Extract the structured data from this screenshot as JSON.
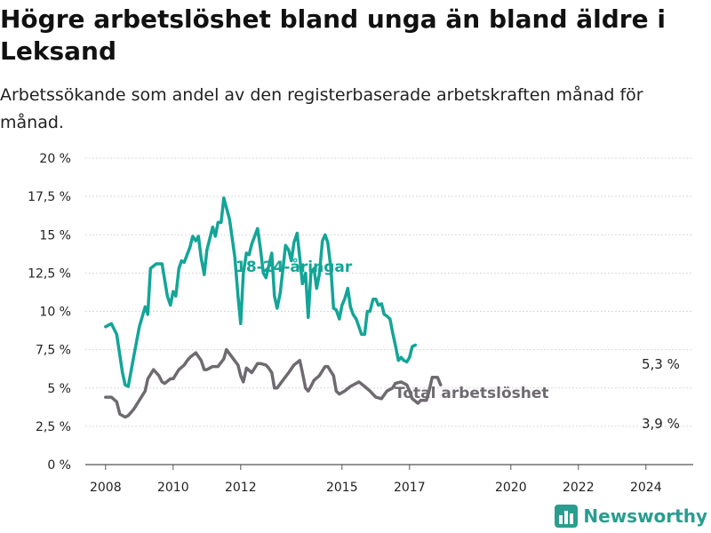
{
  "title": "Högre arbetslöshet bland unga än bland äldre i Leksand",
  "subtitle": "Arbetssökande som andel av den registerbaserade arbetskraften månad för månad.",
  "brand": {
    "name": "Newsworthy",
    "icon": "bar-chart-logo-icon",
    "color": "#2a9d8f"
  },
  "chart_data": {
    "type": "line",
    "x_unit": "year",
    "ylim": [
      0,
      20
    ],
    "xlim": [
      2007.4,
      2025.4
    ],
    "yticks": [
      0,
      2.5,
      5,
      7.5,
      10,
      12.5,
      15,
      17.5,
      20
    ],
    "ytick_labels": [
      "0 %",
      "2,5 %",
      "5 %",
      "7,5 %",
      "10 %",
      "12,5 %",
      "15 %",
      "17,5 %",
      "20 %"
    ],
    "xticks": [
      2008,
      2010,
      2012,
      2015,
      2017,
      2020,
      2022,
      2024
    ],
    "xtick_labels": [
      "2008",
      "2010",
      "2012",
      "2015",
      "2017",
      "2020",
      "2022",
      "2024"
    ],
    "grid": "horizontal",
    "series": [
      {
        "name": "18-24-åringar",
        "color": "#13a597",
        "end_label": "5,3 %",
        "points": [
          [
            2008.0,
            9.0
          ],
          [
            2008.17,
            9.2
          ],
          [
            2008.33,
            8.5
          ],
          [
            2008.5,
            6.0
          ],
          [
            2008.58,
            5.2
          ],
          [
            2008.67,
            5.1
          ],
          [
            2008.83,
            7.0
          ],
          [
            2009.0,
            9.0
          ],
          [
            2009.17,
            10.3
          ],
          [
            2009.25,
            9.8
          ],
          [
            2009.33,
            12.8
          ],
          [
            2009.5,
            13.1
          ],
          [
            2009.67,
            13.1
          ],
          [
            2009.83,
            11.0
          ],
          [
            2009.92,
            10.4
          ],
          [
            2010.0,
            11.3
          ],
          [
            2010.08,
            11.0
          ],
          [
            2010.17,
            12.8
          ],
          [
            2010.25,
            13.3
          ],
          [
            2010.33,
            13.2
          ],
          [
            2010.5,
            14.2
          ],
          [
            2010.58,
            14.9
          ],
          [
            2010.67,
            14.6
          ],
          [
            2010.75,
            14.9
          ],
          [
            2010.83,
            13.5
          ],
          [
            2010.92,
            12.4
          ],
          [
            2011.0,
            14.0
          ],
          [
            2011.17,
            15.5
          ],
          [
            2011.25,
            14.9
          ],
          [
            2011.33,
            15.8
          ],
          [
            2011.42,
            15.8
          ],
          [
            2011.5,
            17.4
          ],
          [
            2011.67,
            16.0
          ],
          [
            2011.83,
            13.5
          ],
          [
            2011.92,
            11.0
          ],
          [
            2012.0,
            9.2
          ],
          [
            2012.08,
            12.5
          ],
          [
            2012.17,
            13.8
          ],
          [
            2012.25,
            13.7
          ],
          [
            2012.33,
            14.4
          ],
          [
            2012.5,
            15.4
          ],
          [
            2012.58,
            14.2
          ],
          [
            2012.67,
            12.5
          ],
          [
            2012.75,
            12.2
          ],
          [
            2012.92,
            13.8
          ],
          [
            2013.0,
            11.0
          ],
          [
            2013.08,
            10.2
          ],
          [
            2013.17,
            11.2
          ],
          [
            2013.33,
            14.3
          ],
          [
            2013.42,
            14.0
          ],
          [
            2013.5,
            13.3
          ],
          [
            2013.58,
            14.5
          ],
          [
            2013.67,
            15.1
          ],
          [
            2013.75,
            13.5
          ],
          [
            2013.83,
            11.8
          ],
          [
            2013.92,
            12.5
          ],
          [
            2014.0,
            9.6
          ],
          [
            2014.08,
            12.5
          ],
          [
            2014.17,
            12.8
          ],
          [
            2014.25,
            11.5
          ],
          [
            2014.33,
            12.4
          ],
          [
            2014.42,
            14.6
          ],
          [
            2014.5,
            15.0
          ],
          [
            2014.58,
            14.5
          ],
          [
            2014.67,
            12.8
          ],
          [
            2014.75,
            10.2
          ],
          [
            2014.83,
            10.1
          ],
          [
            2014.92,
            9.5
          ],
          [
            2015.0,
            10.4
          ],
          [
            2015.08,
            10.8
          ],
          [
            2015.17,
            11.5
          ],
          [
            2015.25,
            10.3
          ],
          [
            2015.33,
            9.8
          ],
          [
            2015.42,
            9.5
          ],
          [
            2015.58,
            8.5
          ],
          [
            2015.67,
            8.5
          ],
          [
            2015.75,
            10.0
          ],
          [
            2015.83,
            10.0
          ],
          [
            2015.92,
            10.8
          ],
          [
            2016.0,
            10.8
          ],
          [
            2016.08,
            10.4
          ],
          [
            2016.17,
            10.5
          ],
          [
            2016.25,
            9.8
          ],
          [
            2016.33,
            9.7
          ],
          [
            2016.42,
            9.5
          ],
          [
            2016.5,
            8.6
          ],
          [
            2016.58,
            7.8
          ],
          [
            2016.67,
            6.8
          ],
          [
            2016.75,
            7.0
          ],
          [
            2016.83,
            6.8
          ],
          [
            2016.92,
            6.7
          ],
          [
            2017.0,
            7.0
          ],
          [
            2017.08,
            7.7
          ],
          [
            2017.17,
            7.8
          ]
        ]
      },
      {
        "name": "Total arbetslöshet",
        "color": "#6e6a70",
        "end_label": "3,9 %",
        "points": [
          [
            2008.0,
            4.4
          ],
          [
            2008.17,
            4.4
          ],
          [
            2008.33,
            4.1
          ],
          [
            2008.42,
            3.3
          ],
          [
            2008.58,
            3.1
          ],
          [
            2008.67,
            3.2
          ],
          [
            2008.83,
            3.6
          ],
          [
            2009.0,
            4.2
          ],
          [
            2009.17,
            4.8
          ],
          [
            2009.25,
            5.6
          ],
          [
            2009.42,
            6.2
          ],
          [
            2009.58,
            5.8
          ],
          [
            2009.67,
            5.4
          ],
          [
            2009.75,
            5.3
          ],
          [
            2009.92,
            5.6
          ],
          [
            2010.0,
            5.6
          ],
          [
            2010.17,
            6.2
          ],
          [
            2010.33,
            6.5
          ],
          [
            2010.42,
            6.8
          ],
          [
            2010.5,
            7.0
          ],
          [
            2010.67,
            7.3
          ],
          [
            2010.83,
            6.8
          ],
          [
            2010.92,
            6.2
          ],
          [
            2011.0,
            6.2
          ],
          [
            2011.17,
            6.4
          ],
          [
            2011.33,
            6.4
          ],
          [
            2011.5,
            6.9
          ],
          [
            2011.58,
            7.5
          ],
          [
            2011.75,
            7.0
          ],
          [
            2011.92,
            6.5
          ],
          [
            2012.0,
            5.8
          ],
          [
            2012.08,
            5.4
          ],
          [
            2012.17,
            6.3
          ],
          [
            2012.33,
            6.0
          ],
          [
            2012.5,
            6.6
          ],
          [
            2012.58,
            6.6
          ],
          [
            2012.75,
            6.5
          ],
          [
            2012.83,
            6.3
          ],
          [
            2012.92,
            6.0
          ],
          [
            2013.0,
            5.0
          ],
          [
            2013.08,
            5.0
          ],
          [
            2013.25,
            5.5
          ],
          [
            2013.42,
            6.0
          ],
          [
            2013.58,
            6.5
          ],
          [
            2013.75,
            6.8
          ],
          [
            2013.83,
            6.0
          ],
          [
            2013.92,
            5.0
          ],
          [
            2014.0,
            4.8
          ],
          [
            2014.08,
            5.1
          ],
          [
            2014.17,
            5.5
          ],
          [
            2014.33,
            5.8
          ],
          [
            2014.5,
            6.4
          ],
          [
            2014.58,
            6.4
          ],
          [
            2014.75,
            5.8
          ],
          [
            2014.83,
            4.8
          ],
          [
            2014.92,
            4.6
          ],
          [
            2015.08,
            4.8
          ],
          [
            2015.25,
            5.1
          ],
          [
            2015.42,
            5.3
          ],
          [
            2015.5,
            5.4
          ],
          [
            2015.67,
            5.1
          ],
          [
            2015.83,
            4.8
          ],
          [
            2016.0,
            4.4
          ],
          [
            2016.17,
            4.3
          ],
          [
            2016.33,
            4.8
          ],
          [
            2016.5,
            5.0
          ],
          [
            2016.58,
            5.3
          ],
          [
            2016.75,
            5.4
          ],
          [
            2016.92,
            5.2
          ],
          [
            2017.0,
            4.8
          ],
          [
            2017.08,
            4.3
          ],
          [
            2017.25,
            4.0
          ],
          [
            2017.33,
            4.2
          ],
          [
            2017.5,
            4.2
          ],
          [
            2017.58,
            4.8
          ],
          [
            2017.67,
            5.7
          ],
          [
            2017.83,
            5.7
          ],
          [
            2017.92,
            5.2
          ]
        ]
      }
    ]
  }
}
